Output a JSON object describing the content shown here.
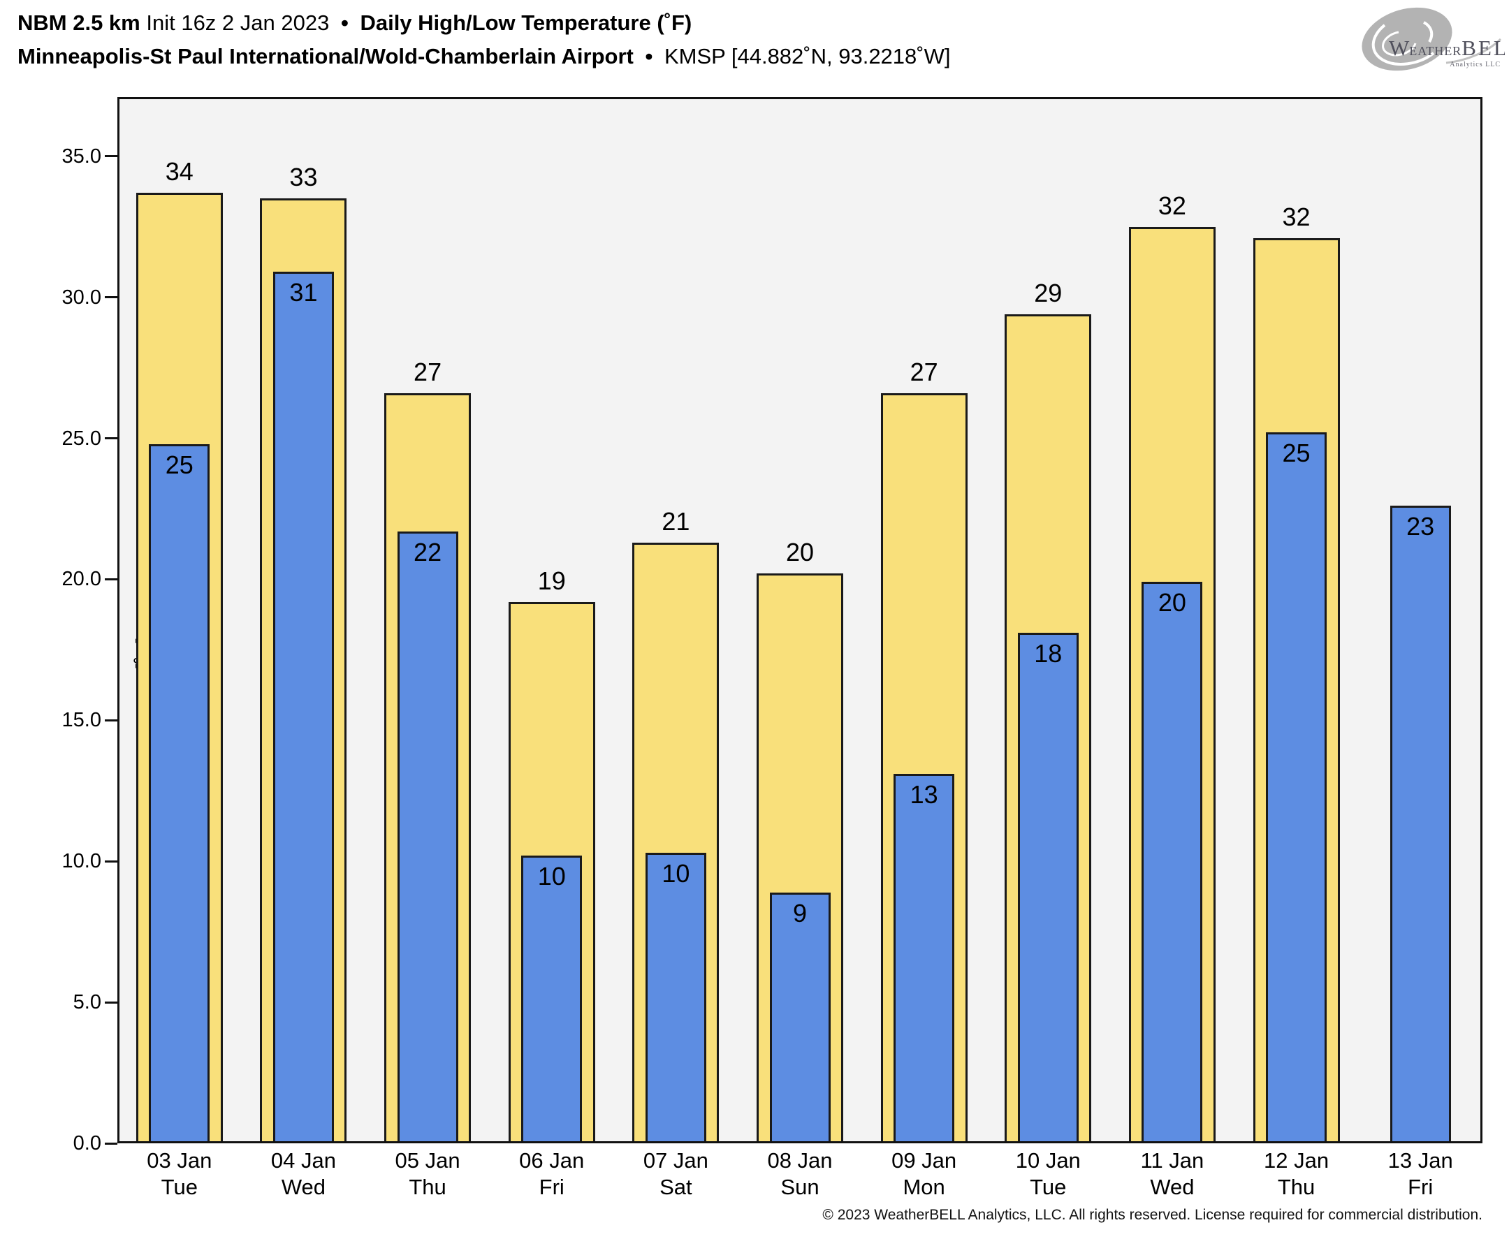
{
  "header": {
    "model": "NBM 2.5 km",
    "init": "Init 16z 2 Jan 2023",
    "bullet": "•",
    "product": "Daily High/Low Temperature (˚F)",
    "station_name": "Minneapolis-St Paul International/Wold-Chamberlain Airport",
    "station_id": "KMSP [44.882˚N, 93.2218˚W]"
  },
  "logo": {
    "part_w": "W",
    "part_eather": "EATHER",
    "part_bell": "BELL",
    "subtext": "Analytics LLC"
  },
  "footer": {
    "copyright": "© 2023 WeatherBELL Analytics, LLC. All rights reserved. License required for commercial distribution."
  },
  "chart_data": {
    "type": "bar",
    "title": "NBM 2.5 km Daily High/Low Temperature (˚F) — KMSP",
    "ylabel": "Temperature [˚F]",
    "ylim": [
      0,
      37.1
    ],
    "grid": false,
    "legend": false,
    "plot_background": "#f3f3f3",
    "yticks": [
      {
        "value": 0,
        "label": "0.0"
      },
      {
        "value": 5,
        "label": "5.0"
      },
      {
        "value": 10,
        "label": "10.0"
      },
      {
        "value": 15,
        "label": "15.0"
      },
      {
        "value": 20,
        "label": "20.0"
      },
      {
        "value": 25,
        "label": "25.0"
      },
      {
        "value": 30,
        "label": "30.0"
      },
      {
        "value": 35,
        "label": "35.0"
      }
    ],
    "categories": [
      {
        "date": "03 Jan",
        "day": "Tue"
      },
      {
        "date": "04 Jan",
        "day": "Wed"
      },
      {
        "date": "05 Jan",
        "day": "Thu"
      },
      {
        "date": "06 Jan",
        "day": "Fri"
      },
      {
        "date": "07 Jan",
        "day": "Sat"
      },
      {
        "date": "08 Jan",
        "day": "Sun"
      },
      {
        "date": "09 Jan",
        "day": "Mon"
      },
      {
        "date": "10 Jan",
        "day": "Tue"
      },
      {
        "date": "11 Jan",
        "day": "Wed"
      },
      {
        "date": "12 Jan",
        "day": "Thu"
      },
      {
        "date": "13 Jan",
        "day": "Fri"
      }
    ],
    "series": [
      {
        "name": "High",
        "color": "#f9e07b",
        "values": [
          33.7,
          33.5,
          26.6,
          19.2,
          21.3,
          20.2,
          26.6,
          29.4,
          32.5,
          32.1,
          null
        ],
        "labels": [
          "34",
          "33",
          "27",
          "19",
          "21",
          "20",
          "27",
          "29",
          "32",
          "32",
          null
        ]
      },
      {
        "name": "Low",
        "color": "#5d8de2",
        "values": [
          24.8,
          30.9,
          21.7,
          10.2,
          10.3,
          8.9,
          13.1,
          18.1,
          19.9,
          25.2,
          22.6
        ],
        "labels": [
          "25",
          "31",
          "22",
          "10",
          "10",
          "9",
          "13",
          "18",
          "20",
          "25",
          "23"
        ]
      }
    ]
  }
}
